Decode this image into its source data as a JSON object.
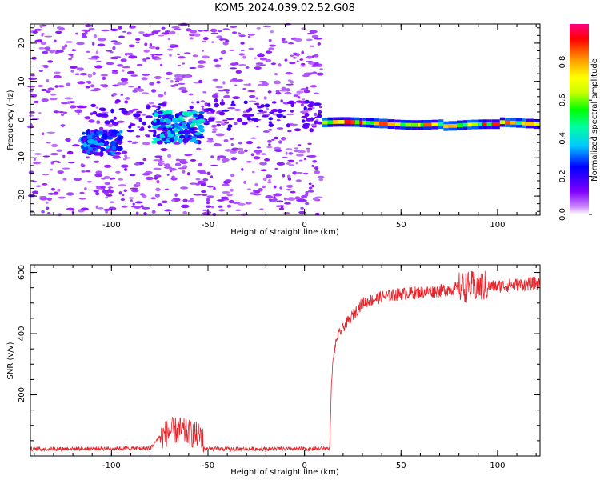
{
  "chart_data": [
    {
      "type": "heatmap",
      "title": "KOM5.2024.039.02.52.G08",
      "xlabel": "Height of straight line (km)",
      "ylabel": "Frequency (Hz)",
      "xlim": [
        -142,
        122
      ],
      "ylim": [
        -25,
        25
      ],
      "xticks": [
        -100,
        -50,
        0,
        50,
        100
      ],
      "yticks": [
        -20,
        -10,
        0,
        10,
        20
      ],
      "colorbar": {
        "label": "Normalized spectral amplitude",
        "range": [
          0,
          1
        ],
        "ticks": [
          0.0,
          0.2,
          0.4,
          0.6,
          0.8
        ],
        "placement": "right"
      },
      "features": [
        {
          "x_range": [
            -142,
            9
          ],
          "freq_range": [
            -25,
            25
          ],
          "level": 0.1,
          "description": "scattered noise"
        },
        {
          "x_range": [
            -115,
            -95
          ],
          "freq_range": [
            -9,
            -3
          ],
          "level": 0.25
        },
        {
          "x_range": [
            -78,
            -53
          ],
          "freq_range": [
            -6,
            2
          ],
          "level": 0.35
        },
        {
          "x_range": [
            9,
            122
          ],
          "freq_center": -1,
          "freq_width": 2.5,
          "level": 0.95,
          "description": "continuous carrier trace"
        }
      ],
      "grid": false
    },
    {
      "type": "line",
      "xlabel": "Height of straight line (km)",
      "ylabel": "SNR (v/v)",
      "xlim": [
        -142,
        122
      ],
      "ylim": [
        0,
        625
      ],
      "xticks": [
        -100,
        -50,
        0,
        50,
        100
      ],
      "yticks": [
        200,
        400,
        600
      ],
      "line_color": "#e8242a",
      "series": [
        {
          "x": [
            -142,
            -80,
            -75,
            -70,
            -65,
            -60,
            -55,
            -53,
            -52,
            0,
            13,
            14,
            15,
            17,
            20,
            25,
            30,
            40,
            50,
            60,
            70,
            80,
            90,
            100,
            110,
            122
          ],
          "values": [
            20,
            22,
            60,
            80,
            85,
            75,
            65,
            70,
            20,
            20,
            22,
            240,
            330,
            390,
            420,
            460,
            500,
            520,
            530,
            535,
            540,
            550,
            555,
            555,
            560,
            565
          ]
        }
      ],
      "grid": false
    }
  ]
}
